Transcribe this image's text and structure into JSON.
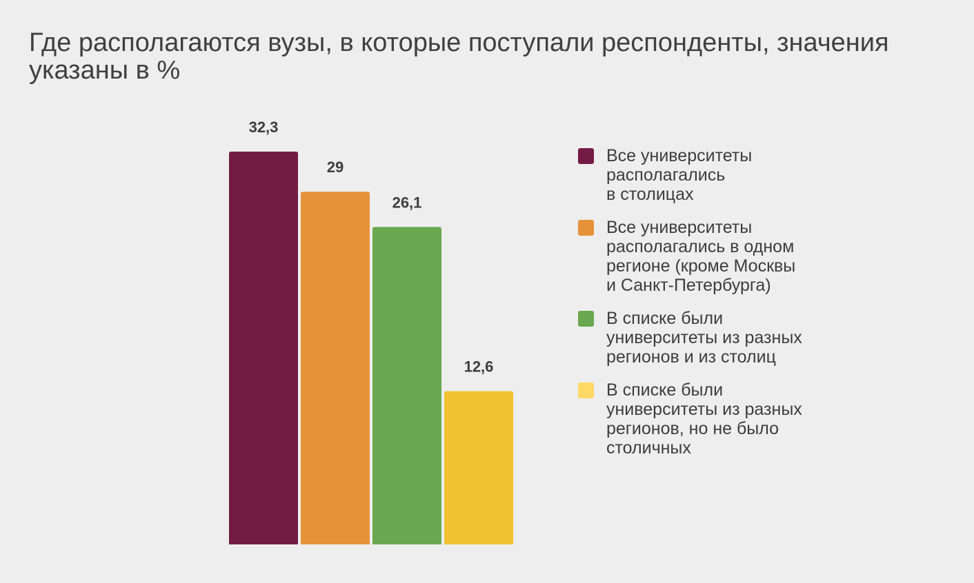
{
  "chart_data": {
    "type": "bar",
    "title": "Где располагаются вузы, в которые поступали респонденты, значения указаны в %",
    "categories": [
      "Все университеты располагались\nв столицах",
      "Все университеты располагались в одном регионе (кроме Москвы и Санкт-Петербурга)",
      "В списке были университеты из разных регионов и из столиц",
      "В списке были университеты из разных регионов, но не было столичных"
    ],
    "values": [
      32.3,
      29,
      26.1,
      12.6
    ],
    "value_labels": [
      "32,3",
      "29",
      "26,1",
      "12,6"
    ],
    "colors": [
      "#741b45",
      "#e69239",
      "#69a84f",
      "#f1c232"
    ],
    "legend_colors": [
      "#741b45",
      "#e69239",
      "#69a84f",
      "#ffd966"
    ],
    "ylim": [
      0,
      32.3
    ],
    "grid": false,
    "legend_position": "right",
    "xlabel": "",
    "ylabel": ""
  },
  "legend": [
    {
      "label": "Все университеты\nрасполагались\nв столицах"
    },
    {
      "label": "Все университеты\nрасполагались в одном\nрегионе (кроме Москвы\nи Санкт-Петербурга)"
    },
    {
      "label": "В списке были\nуниверситеты из разных\nрегионов и из столиц"
    },
    {
      "label": "В списке были\nуниверситеты из разных\nрегионов, но не было\nстоличных"
    }
  ]
}
